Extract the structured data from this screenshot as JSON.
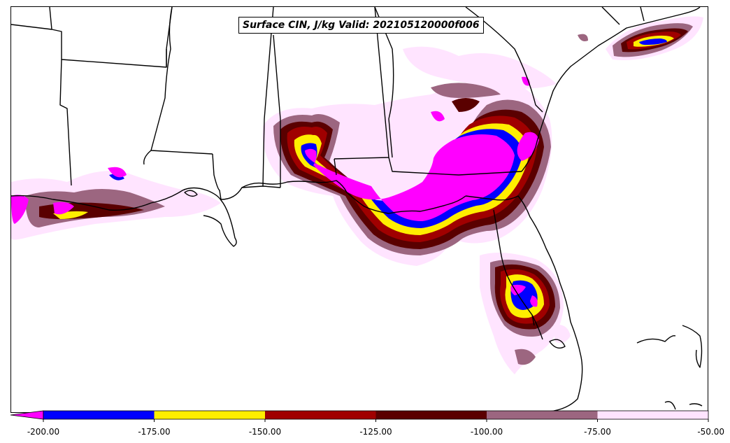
{
  "title": "Surface CIN, J/kg Valid: 202105120000f006",
  "colorbar": {
    "extend_color": "#ff00ff",
    "bins": [
      {
        "from": -200,
        "to": -175,
        "color": "#0000ff"
      },
      {
        "from": -175,
        "to": -150,
        "color": "#ffee00"
      },
      {
        "from": -150,
        "to": -125,
        "color": "#a00000"
      },
      {
        "from": -125,
        "to": -100,
        "color": "#5a0000"
      },
      {
        "from": -100,
        "to": -75,
        "color": "#9c6680"
      },
      {
        "from": -75,
        "to": -50,
        "color": "#ffe4ff"
      }
    ],
    "tick_labels": [
      "-200.00",
      "-175.00",
      "-150.00",
      "-125.00",
      "-100.00",
      "-75.00",
      "-50.00"
    ]
  },
  "colors": {
    "below_200": "#ff00ff",
    "lvl_175": "#0000ff",
    "lvl_150": "#ffee00",
    "lvl_125": "#a00000",
    "lvl_100": "#5a0000",
    "lvl_75": "#9c6680",
    "lvl_50": "#ffe4ff",
    "borders": "#000000"
  }
}
